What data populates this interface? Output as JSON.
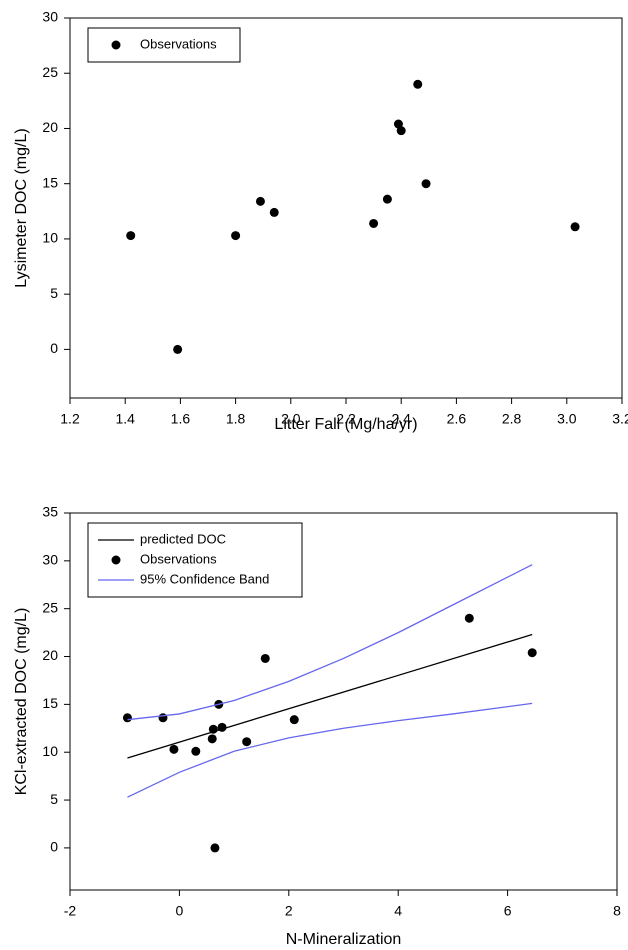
{
  "chart_data": [
    {
      "type": "scatter",
      "xlabel": "Litter Fall (Mg/ha/yr)",
      "ylabel": "Lysimeter DOC (mg/L)",
      "xlim": [
        1.2,
        3.2
      ],
      "ylim": [
        -4.4,
        30
      ],
      "xticks": [
        1.2,
        1.4,
        1.6,
        1.8,
        {
          "value": 2,
          "label": "2.0"
        },
        2.2,
        2.4,
        2.6,
        2.8,
        {
          "value": 3,
          "label": "3.0"
        },
        3.2
      ],
      "yticks": [
        0,
        5,
        10,
        15,
        20,
        25,
        30
      ],
      "legend": "upper left",
      "series": [
        {
          "name": "Observations",
          "kind": "scatter",
          "color": "#000000",
          "x": [
            1.42,
            1.59,
            1.8,
            1.89,
            1.94,
            2.3,
            2.35,
            2.39,
            2.4,
            2.46,
            2.49,
            3.03
          ],
          "values": [
            10.3,
            0,
            10.3,
            13.4,
            12.4,
            11.4,
            13.6,
            20.4,
            19.8,
            24.0,
            15.0,
            11.1
          ]
        }
      ]
    },
    {
      "type": "scatter",
      "xlabel": "N-Mineralization",
      "ylabel": "KCl-extracted DOC (mg/L)",
      "xlim": [
        -2,
        8
      ],
      "ylim": [
        -4.4,
        35
      ],
      "xticks": [
        -2,
        0,
        2,
        4,
        6,
        8
      ],
      "yticks": [
        0,
        5,
        10,
        15,
        20,
        25,
        30,
        35
      ],
      "legend": "upper left",
      "series": [
        {
          "name": "predicted DOC",
          "kind": "line",
          "color": "#000000",
          "x": [
            -0.95,
            6.45
          ],
          "values": [
            9.4,
            22.3
          ]
        },
        {
          "name": "Observations",
          "kind": "scatter",
          "color": "#000000",
          "x": [
            -0.95,
            -0.3,
            -0.1,
            0.3,
            0.6,
            0.62,
            0.65,
            0.72,
            0.78,
            1.23,
            1.57,
            2.1,
            5.3,
            6.45
          ],
          "values": [
            13.6,
            13.6,
            10.3,
            10.1,
            11.4,
            12.4,
            0,
            15.0,
            12.6,
            11.1,
            19.8,
            13.4,
            24.0,
            20.4
          ]
        },
        {
          "name": "95% Confidence Band",
          "kind": "band",
          "color": "#6666ee",
          "x": [
            -0.95,
            0,
            1,
            2,
            3,
            4,
            5,
            6.45
          ],
          "upper": [
            13.4,
            14.0,
            15.4,
            17.4,
            19.8,
            22.5,
            25.4,
            29.6
          ],
          "lower": [
            5.3,
            7.9,
            10.1,
            11.5,
            12.5,
            13.3,
            14.0,
            15.1
          ]
        }
      ]
    }
  ]
}
